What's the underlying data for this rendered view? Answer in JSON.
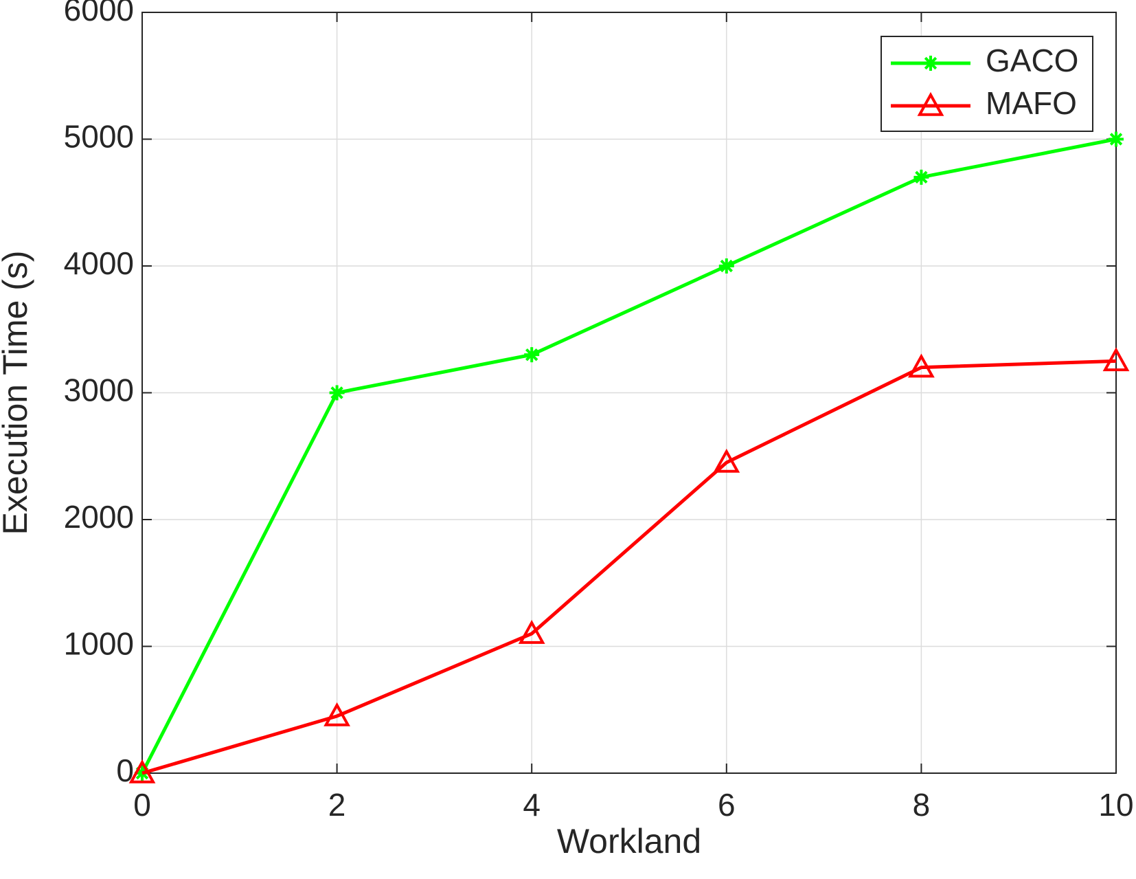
{
  "chart_data": {
    "type": "line",
    "xlabel": "Workland",
    "ylabel": "Execution Time (s)",
    "x": [
      0,
      2,
      4,
      6,
      8,
      10
    ],
    "series": [
      {
        "name": "GACO",
        "color": "#00ff00",
        "marker": "asterisk",
        "values": [
          0,
          3000,
          3300,
          4000,
          4700,
          5000
        ]
      },
      {
        "name": "MAFO",
        "color": "#ff0000",
        "marker": "triangle",
        "values": [
          0,
          450,
          1100,
          2450,
          3200,
          3250
        ]
      }
    ],
    "xlim": [
      0,
      10
    ],
    "xticks": [
      0,
      2,
      4,
      6,
      8,
      10
    ],
    "ylim": [
      0,
      6000
    ],
    "yticks": [
      0,
      1000,
      2000,
      3000,
      4000,
      5000,
      6000
    ],
    "grid": true,
    "legend": "top-right"
  }
}
